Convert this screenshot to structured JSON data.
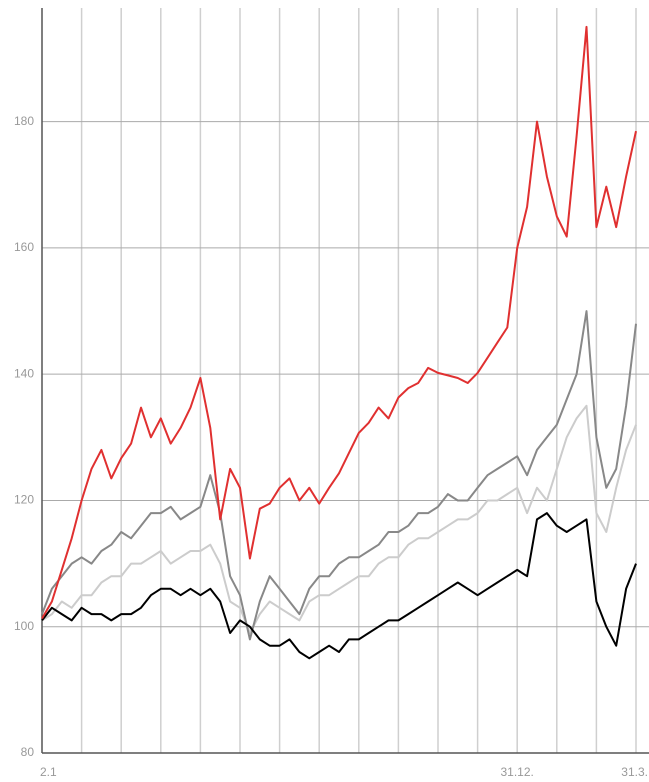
{
  "chart_data": {
    "type": "line",
    "categories": [
      "2.1",
      null,
      null,
      null,
      null,
      null,
      null,
      null,
      null,
      null,
      null,
      null,
      null,
      null,
      null,
      null,
      null,
      null,
      null,
      null,
      null,
      null,
      null,
      null,
      null,
      null,
      null,
      null,
      null,
      null,
      null,
      null,
      null,
      null,
      null,
      null,
      null,
      null,
      null,
      null,
      null,
      null,
      null,
      null,
      null,
      null,
      null,
      null,
      "31.12.",
      null,
      null,
      null,
      null,
      null,
      null,
      null,
      null,
      null,
      null,
      null,
      "31.3."
    ],
    "series": [
      {
        "color": "#cccccc",
        "values": [
          101,
          102,
          104,
          103,
          105,
          105,
          107,
          108,
          108,
          110,
          110,
          111,
          112,
          110,
          111,
          112,
          112,
          113,
          110,
          104,
          103,
          99,
          102,
          104,
          103,
          102,
          101,
          104,
          105,
          105,
          106,
          107,
          108,
          108,
          110,
          111,
          111,
          113,
          114,
          114,
          115,
          116,
          117,
          117,
          118,
          120,
          120,
          121,
          122,
          118,
          122,
          120,
          125,
          130,
          133,
          135,
          118,
          115,
          122,
          128,
          132
        ]
      },
      {
        "color": "#888888",
        "values": [
          102,
          106,
          108,
          110,
          111,
          110,
          112,
          113,
          115,
          114,
          116,
          118,
          118,
          119,
          117,
          118,
          119,
          124,
          118,
          108,
          105,
          98,
          104,
          108,
          106,
          104,
          102,
          106,
          108,
          108,
          110,
          111,
          111,
          112,
          113,
          115,
          115,
          116,
          118,
          118,
          119,
          121,
          120,
          120,
          122,
          124,
          125,
          126,
          127,
          124,
          128,
          130,
          132,
          136,
          140,
          150,
          130,
          122,
          125,
          135,
          148
        ]
      },
      {
        "color": "#000000",
        "values": [
          101,
          103,
          102,
          101,
          103,
          102,
          102,
          101,
          102,
          102,
          103,
          105,
          106,
          106,
          105,
          106,
          105,
          106,
          104,
          99,
          101,
          100,
          98,
          97,
          97,
          98,
          96,
          95,
          96,
          97,
          96,
          98,
          98,
          99,
          100,
          101,
          101,
          102,
          103,
          104,
          105,
          106,
          107,
          106,
          105,
          106,
          107,
          108,
          109,
          108,
          117,
          118,
          116,
          115,
          116,
          117,
          104,
          100,
          97,
          106,
          110
        ]
      },
      {
        "color": "#e03030",
        "values": [
          101.3,
          104,
          109,
          114,
          120,
          125,
          128,
          123.5,
          126.7,
          129,
          134.7,
          130,
          133,
          129,
          131.5,
          134.7,
          139.4,
          131.5,
          117,
          125,
          122,
          110.8,
          118.7,
          119.5,
          122,
          123.5,
          120,
          122,
          119.5,
          122,
          124.3,
          127.5,
          130.7,
          132.3,
          134.7,
          133,
          136.3,
          137.8,
          138.6,
          141,
          140.2,
          139.8,
          139.4,
          138.6,
          140.2,
          142.6,
          145,
          147.4,
          160,
          166.5,
          180,
          171.3,
          165,
          161.8,
          177.7,
          195,
          163.3,
          169.7,
          163.3,
          171.3,
          178.5
        ]
      }
    ],
    "ylim": [
      80,
      198
    ],
    "yticks": [
      80,
      100,
      120,
      140,
      160,
      180
    ],
    "grid": true
  }
}
